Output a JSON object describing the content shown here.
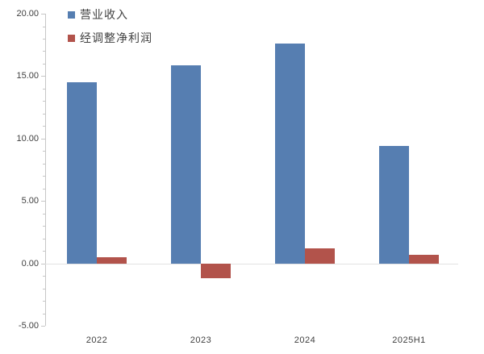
{
  "chart_data": {
    "type": "bar",
    "title": "",
    "xlabel": "",
    "ylabel": "",
    "categories": [
      "2022",
      "2023",
      "2024",
      "2025H1"
    ],
    "series": [
      {
        "name": "营业收入",
        "color": "#567EB1",
        "values": [
          14.5,
          15.9,
          17.6,
          9.4
        ]
      },
      {
        "name": "经调整净利润",
        "color": "#B2534B",
        "values": [
          0.5,
          -1.2,
          1.2,
          0.7
        ]
      }
    ],
    "ylim": [
      -5,
      20
    ],
    "yticks": [
      {
        "value": 20,
        "label": "20.00"
      },
      {
        "value": 15,
        "label": "15.00"
      },
      {
        "value": 10,
        "label": "10.00"
      },
      {
        "value": 5,
        "label": "5.00"
      },
      {
        "value": 0,
        "label": "0.00"
      },
      {
        "value": -5,
        "label": "-5.00"
      }
    ],
    "minor_tick_step": 1,
    "grid": "zero-line-only",
    "legend_position": "top-left",
    "colors": {
      "axis": "#C6C6C6",
      "zero_line": "#E2E2E2",
      "text": "#404040",
      "background": "#FFFFFF"
    }
  }
}
